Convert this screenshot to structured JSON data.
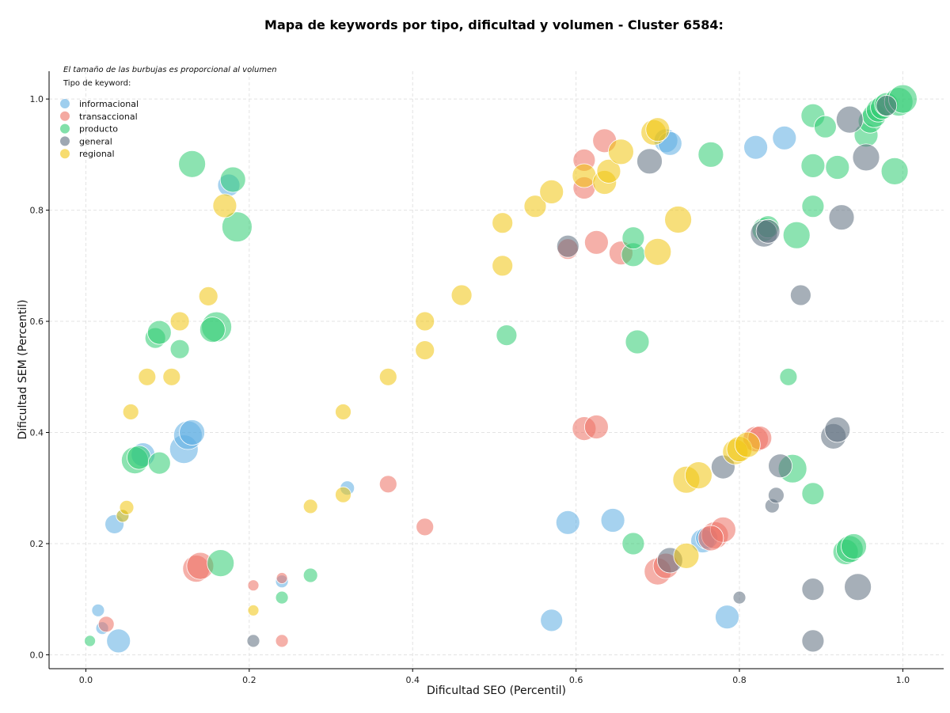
{
  "chart_data": {
    "type": "scatter",
    "title": "Mapa de keywords por tipo, dificultad y volumen - Cluster 6584:",
    "xlabel": "Dificultad SEO (Percentil)",
    "ylabel": "Dificultad SEM (Percentil)",
    "xlim": [
      -0.045,
      1.05
    ],
    "ylim": [
      -0.025,
      1.05
    ],
    "xticks": [
      "0.0",
      "0.2",
      "0.4",
      "0.6",
      "0.8",
      "1.0"
    ],
    "yticks": [
      "0.0",
      "0.2",
      "0.4",
      "0.6",
      "0.8",
      "1.0"
    ],
    "grid": true,
    "note": "El tamaño de las burbujas es proporcional al volumen",
    "legend_title": "Tipo de keyword:",
    "legend_position": "top-left",
    "series": [
      {
        "name": "informacional",
        "color": "#5DADE2",
        "points": [
          [
            0.015,
            0.08,
            8
          ],
          [
            0.02,
            0.048,
            8
          ],
          [
            0.035,
            0.235,
            12
          ],
          [
            0.04,
            0.025,
            15
          ],
          [
            0.045,
            0.25,
            8
          ],
          [
            0.07,
            0.36,
            15
          ],
          [
            0.12,
            0.37,
            18
          ],
          [
            0.125,
            0.395,
            18
          ],
          [
            0.13,
            0.4,
            16
          ],
          [
            0.175,
            0.845,
            14
          ],
          [
            0.32,
            0.3,
            9
          ],
          [
            0.24,
            0.132,
            8
          ],
          [
            0.59,
            0.238,
            15
          ],
          [
            0.57,
            0.062,
            14
          ],
          [
            0.645,
            0.242,
            15
          ],
          [
            0.785,
            0.068,
            15
          ],
          [
            0.755,
            0.205,
            15
          ],
          [
            0.76,
            0.21,
            14
          ],
          [
            0.82,
            0.913,
            15
          ],
          [
            0.855,
            0.93,
            15
          ],
          [
            0.71,
            0.925,
            15
          ],
          [
            0.715,
            0.92,
            15
          ]
        ]
      },
      {
        "name": "transaccional",
        "color": "#EC7063",
        "points": [
          [
            0.025,
            0.055,
            10
          ],
          [
            0.135,
            0.155,
            17
          ],
          [
            0.14,
            0.16,
            17
          ],
          [
            0.205,
            0.125,
            7
          ],
          [
            0.24,
            0.138,
            7
          ],
          [
            0.24,
            0.025,
            8
          ],
          [
            0.37,
            0.307,
            11
          ],
          [
            0.415,
            0.23,
            11
          ],
          [
            0.59,
            0.73,
            13
          ],
          [
            0.61,
            0.84,
            14
          ],
          [
            0.61,
            0.89,
            14
          ],
          [
            0.635,
            0.925,
            15
          ],
          [
            0.625,
            0.742,
            15
          ],
          [
            0.655,
            0.723,
            15
          ],
          [
            0.61,
            0.407,
            15
          ],
          [
            0.625,
            0.41,
            15
          ],
          [
            0.7,
            0.15,
            17
          ],
          [
            0.71,
            0.16,
            16
          ],
          [
            0.77,
            0.215,
            17
          ],
          [
            0.78,
            0.225,
            16
          ],
          [
            0.765,
            0.21,
            16
          ],
          [
            0.82,
            0.388,
            16
          ],
          [
            0.825,
            0.39,
            15
          ]
        ]
      },
      {
        "name": "producto",
        "color": "#2ECC71",
        "points": [
          [
            0.005,
            0.025,
            7
          ],
          [
            0.06,
            0.35,
            17
          ],
          [
            0.065,
            0.355,
            15
          ],
          [
            0.09,
            0.345,
            14
          ],
          [
            0.085,
            0.57,
            13
          ],
          [
            0.09,
            0.58,
            15
          ],
          [
            0.115,
            0.55,
            12
          ],
          [
            0.13,
            0.883,
            17
          ],
          [
            0.16,
            0.59,
            19
          ],
          [
            0.155,
            0.585,
            16
          ],
          [
            0.18,
            0.855,
            16
          ],
          [
            0.185,
            0.77,
            19
          ],
          [
            0.165,
            0.165,
            17
          ],
          [
            0.275,
            0.143,
            9
          ],
          [
            0.24,
            0.103,
            8
          ],
          [
            0.515,
            0.575,
            13
          ],
          [
            0.67,
            0.2,
            14
          ],
          [
            0.67,
            0.72,
            15
          ],
          [
            0.675,
            0.563,
            15
          ],
          [
            0.67,
            0.75,
            14
          ],
          [
            0.765,
            0.9,
            16
          ],
          [
            0.83,
            0.765,
            15
          ],
          [
            0.835,
            0.77,
            14
          ],
          [
            0.87,
            0.755,
            17
          ],
          [
            0.86,
            0.5,
            11
          ],
          [
            0.89,
            0.29,
            14
          ],
          [
            0.865,
            0.335,
            18
          ],
          [
            0.89,
            0.807,
            14
          ],
          [
            0.89,
            0.88,
            15
          ],
          [
            0.89,
            0.97,
            15
          ],
          [
            0.905,
            0.95,
            14
          ],
          [
            0.92,
            0.877,
            15
          ],
          [
            0.93,
            0.185,
            16
          ],
          [
            0.935,
            0.19,
            17
          ],
          [
            0.94,
            0.195,
            16
          ],
          [
            0.955,
            0.935,
            15
          ],
          [
            0.96,
            0.96,
            15
          ],
          [
            0.965,
            0.97,
            15
          ],
          [
            0.97,
            0.98,
            15
          ],
          [
            0.975,
            0.985,
            15
          ],
          [
            0.98,
            0.99,
            15
          ],
          [
            0.99,
            0.87,
            17
          ],
          [
            0.995,
            0.995,
            18
          ],
          [
            1.0,
            1.0,
            18
          ]
        ]
      },
      {
        "name": "general",
        "color": "#5D6D7E",
        "points": [
          [
            0.205,
            0.025,
            8
          ],
          [
            0.59,
            0.735,
            14
          ],
          [
            0.69,
            0.888,
            16
          ],
          [
            0.715,
            0.17,
            16
          ],
          [
            0.78,
            0.338,
            15
          ],
          [
            0.8,
            0.103,
            8
          ],
          [
            0.83,
            0.758,
            17
          ],
          [
            0.835,
            0.762,
            15
          ],
          [
            0.85,
            0.34,
            15
          ],
          [
            0.84,
            0.268,
            9
          ],
          [
            0.845,
            0.287,
            10
          ],
          [
            0.875,
            0.647,
            13
          ],
          [
            0.89,
            0.118,
            14
          ],
          [
            0.89,
            0.025,
            14
          ],
          [
            0.915,
            0.393,
            16
          ],
          [
            0.92,
            0.405,
            16
          ],
          [
            0.925,
            0.787,
            16
          ],
          [
            0.935,
            0.963,
            17
          ],
          [
            0.945,
            0.122,
            17
          ],
          [
            0.955,
            0.895,
            17
          ],
          [
            0.98,
            0.988,
            13
          ]
        ]
      },
      {
        "name": "regional",
        "color": "#F1C40F",
        "points": [
          [
            0.045,
            0.25,
            8
          ],
          [
            0.05,
            0.265,
            9
          ],
          [
            0.055,
            0.437,
            10
          ],
          [
            0.075,
            0.5,
            11
          ],
          [
            0.105,
            0.5,
            11
          ],
          [
            0.115,
            0.6,
            12
          ],
          [
            0.15,
            0.645,
            12
          ],
          [
            0.17,
            0.808,
            15
          ],
          [
            0.205,
            0.08,
            7
          ],
          [
            0.275,
            0.267,
            9
          ],
          [
            0.315,
            0.437,
            10
          ],
          [
            0.315,
            0.288,
            10
          ],
          [
            0.37,
            0.5,
            11
          ],
          [
            0.415,
            0.6,
            12
          ],
          [
            0.415,
            0.548,
            12
          ],
          [
            0.46,
            0.647,
            13
          ],
          [
            0.51,
            0.7,
            13
          ],
          [
            0.51,
            0.777,
            13
          ],
          [
            0.55,
            0.807,
            14
          ],
          [
            0.57,
            0.833,
            15
          ],
          [
            0.61,
            0.862,
            15
          ],
          [
            0.635,
            0.85,
            15
          ],
          [
            0.64,
            0.87,
            15
          ],
          [
            0.655,
            0.905,
            16
          ],
          [
            0.7,
            0.725,
            17
          ],
          [
            0.695,
            0.94,
            16
          ],
          [
            0.7,
            0.945,
            15
          ],
          [
            0.725,
            0.783,
            17
          ],
          [
            0.735,
            0.315,
            17
          ],
          [
            0.735,
            0.178,
            16
          ],
          [
            0.75,
            0.323,
            17
          ],
          [
            0.795,
            0.365,
            16
          ],
          [
            0.8,
            0.37,
            16
          ],
          [
            0.81,
            0.378,
            16
          ]
        ]
      }
    ]
  }
}
